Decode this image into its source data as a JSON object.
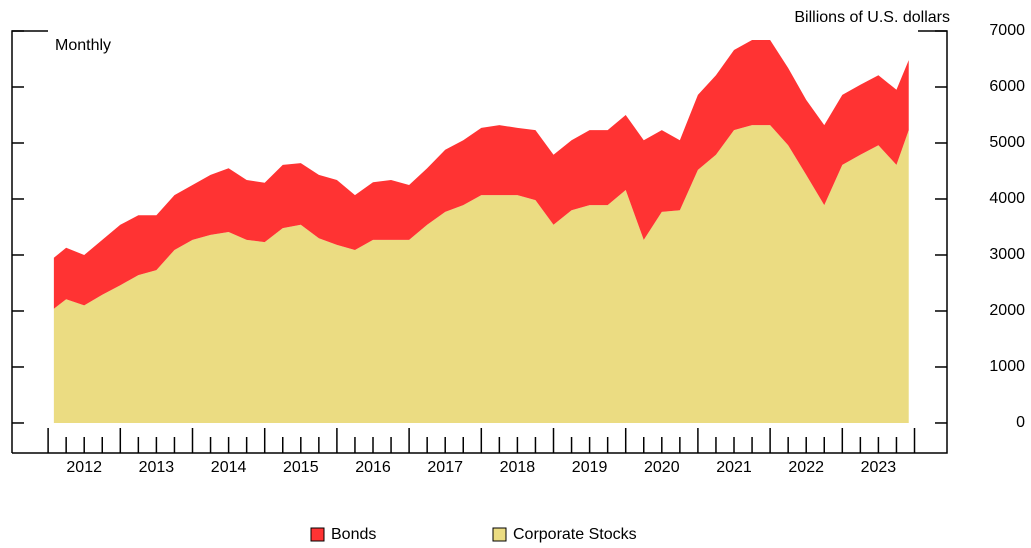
{
  "chart_data": {
    "type": "stacked_area",
    "title": "Billions of U.S. dollars",
    "subtitle": "Monthly",
    "x": [
      2012.08,
      2012.25,
      2012.5,
      2012.75,
      2013.0,
      2013.25,
      2013.5,
      2013.75,
      2014.0,
      2014.25,
      2014.5,
      2014.75,
      2015.0,
      2015.25,
      2015.5,
      2015.75,
      2016.0,
      2016.25,
      2016.5,
      2016.75,
      2017.0,
      2017.25,
      2017.5,
      2017.75,
      2018.0,
      2018.25,
      2018.5,
      2018.75,
      2019.0,
      2019.25,
      2019.5,
      2019.75,
      2020.0,
      2020.25,
      2020.5,
      2020.75,
      2021.0,
      2021.25,
      2021.5,
      2021.75,
      2022.0,
      2022.25,
      2022.5,
      2022.75,
      2023.0,
      2023.25,
      2023.5,
      2023.75,
      2023.92
    ],
    "series": [
      {
        "name": "Bonds",
        "color": "#ff3333",
        "values": [
          910,
          920,
          900,
          980,
          1080,
          1070,
          980,
          980,
          980,
          1070,
          1140,
          1070,
          1060,
          1130,
          1100,
          1130,
          1160,
          980,
          1030,
          1070,
          980,
          1010,
          1110,
          1160,
          1200,
          1250,
          1200,
          1250,
          1250,
          1250,
          1340,
          1340,
          1340,
          1780,
          1460,
          1250,
          1340,
          1420,
          1430,
          1520,
          1520,
          1380,
          1340,
          1430,
          1250,
          1250,
          1250,
          1340,
          1250
        ]
      },
      {
        "name": "Corporate Stocks",
        "color": "#ebdc82",
        "values": [
          2040,
          2210,
          2100,
          2290,
          2460,
          2640,
          2730,
          3090,
          3270,
          3360,
          3410,
          3270,
          3230,
          3480,
          3540,
          3300,
          3180,
          3090,
          3270,
          3270,
          3270,
          3540,
          3770,
          3890,
          4070,
          4070,
          4070,
          3980,
          3540,
          3800,
          3890,
          3890,
          4160,
          3270,
          3770,
          3800,
          4520,
          4790,
          5230,
          5320,
          5320,
          4960,
          4430,
          3890,
          4610,
          4790,
          4960,
          4610,
          5230
        ]
      }
    ],
    "xlim": [
      2011.5,
      2024.45
    ],
    "xticks": [
      2012,
      2013,
      2014,
      2015,
      2016,
      2017,
      2018,
      2019,
      2020,
      2021,
      2022,
      2023,
      2024
    ],
    "xtick_labels": [
      {
        "value": 2012.5,
        "label": "2012"
      },
      {
        "value": 2013.5,
        "label": "2013"
      },
      {
        "value": 2014.5,
        "label": "2014"
      },
      {
        "value": 2015.5,
        "label": "2015"
      },
      {
        "value": 2016.5,
        "label": "2016"
      },
      {
        "value": 2017.5,
        "label": "2017"
      },
      {
        "value": 2018.5,
        "label": "2018"
      },
      {
        "value": 2019.5,
        "label": "2019"
      },
      {
        "value": 2020.5,
        "label": "2020"
      },
      {
        "value": 2021.5,
        "label": "2021"
      },
      {
        "value": 2022.5,
        "label": "2022"
      },
      {
        "value": 2023.5,
        "label": "2023"
      }
    ],
    "ylim": [
      -536,
      7000
    ],
    "yticks": [
      0,
      1000,
      2000,
      3000,
      4000,
      5000,
      6000,
      7000
    ]
  }
}
